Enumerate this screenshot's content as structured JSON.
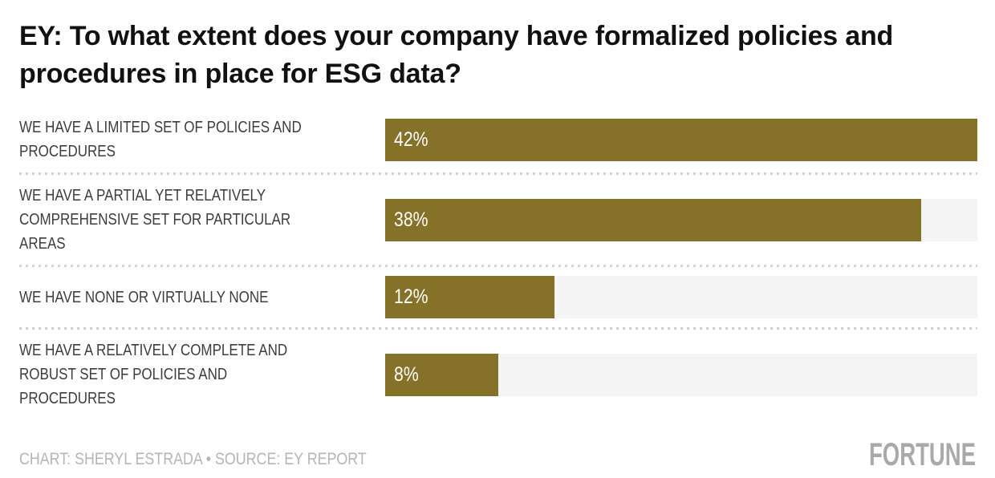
{
  "title": "EY: To what extent does your company have formalized policies and procedures in place for ESG data?",
  "footer": {
    "credit": "CHART: SHERYL ESTRADA • SOURCE: EY REPORT",
    "brand": "FORTUNE"
  },
  "colors": {
    "bar": "#857127",
    "track": "#f4f4f4",
    "title_text": "#111111",
    "label_text": "#3d3d3d",
    "value_text": "#ffffff",
    "credit_text": "#b5b5b5",
    "logo_gray": "#a9a9a9",
    "separator": "#d2d2d2"
  },
  "chart_data": {
    "type": "bar",
    "orientation": "horizontal",
    "title": "EY: To what extent does your company have formalized policies and procedures in place for ESG data?",
    "categories": [
      "WE HAVE A LIMITED SET OF POLICIES AND PROCEDURES",
      "WE HAVE A PARTIAL YET RELATIVELY COMPREHENSIVE SET FOR PARTICULAR AREAS",
      "WE HAVE NONE OR VIRTUALLY NONE",
      "WE HAVE A RELATIVELY COMPLETE AND ROBUST SET OF POLICIES AND PROCEDURES"
    ],
    "values": [
      42,
      38,
      12,
      8
    ],
    "value_labels": [
      "42%",
      "38%",
      "12%",
      "8%"
    ],
    "xlabel": "",
    "ylabel": "",
    "xlim": [
      0,
      42
    ],
    "grid": false,
    "legend": false,
    "value_label_position": "inside-left",
    "bar_color": "#857127"
  },
  "rows": [
    {
      "label_lines": [
        "WE HAVE A LIMITED SET OF POLICIES AND",
        "PROCEDURES"
      ],
      "value": 42,
      "value_label": "42%"
    },
    {
      "label_lines": [
        "WE HAVE A PARTIAL YET RELATIVELY",
        "COMPREHENSIVE SET FOR PARTICULAR",
        "AREAS"
      ],
      "value": 38,
      "value_label": "38%"
    },
    {
      "label_lines": [
        "WE HAVE NONE OR VIRTUALLY NONE"
      ],
      "value": 12,
      "value_label": "12%"
    },
    {
      "label_lines": [
        "WE HAVE A RELATIVELY COMPLETE AND",
        "ROBUST SET OF POLICIES AND",
        "PROCEDURES"
      ],
      "value": 8,
      "value_label": "8%"
    }
  ]
}
